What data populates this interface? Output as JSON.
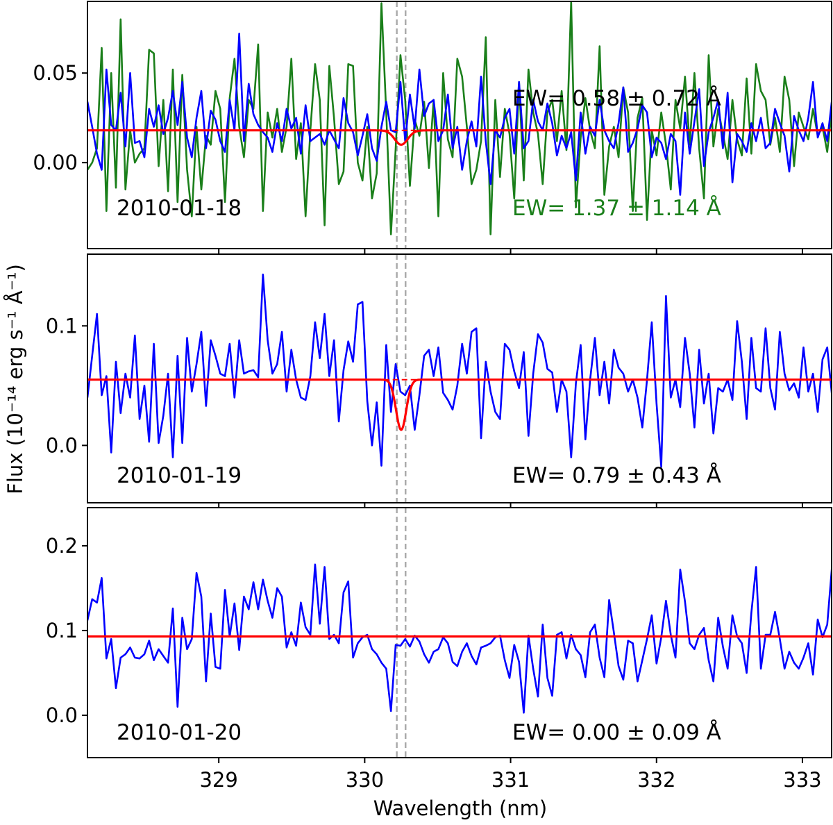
{
  "chart_data": {
    "type": "line",
    "xlabel": "Wavelength (nm)",
    "ylabel": "Flux (10⁻¹⁴ erg s⁻¹ Å⁻¹)",
    "xlim": [
      328.1,
      333.2
    ],
    "xticks": [
      329,
      330,
      331,
      332,
      333
    ],
    "line_markers_nm": [
      330.22,
      330.28
    ],
    "colors": {
      "observed": "#0000ff",
      "second_spectrum": "#1a7f1a",
      "fit": "#ff0000",
      "marker": "#aaaaaa"
    },
    "panels": [
      {
        "date": "2010-01-18",
        "ylim": [
          -0.048,
          0.09
        ],
        "yticks": [
          0.0,
          0.05
        ],
        "ytick_labels": [
          "0.00",
          "0.05"
        ],
        "fit": {
          "continuum": 0.018,
          "depth": 0.008,
          "center": 330.25,
          "sigma": 0.045
        },
        "annotations": [
          {
            "text": "EW= 0.58 ±  0.72 Å",
            "color": "#000000"
          },
          {
            "text": "EW= 1.37 ±  1.14 Å",
            "color": "#1a7f1a"
          }
        ],
        "series": [
          {
            "name": "blue spectrum",
            "color": "#0000ff",
            "x_start": 328.1,
            "x_step": 0.0325,
            "values": [
              0.034,
              0.02,
              0.005,
              -0.004,
              0.052,
              0.021,
              0.018,
              0.039,
              0.009,
              0.05,
              0.011,
              0.012,
              0.003,
              0.03,
              0.02,
              0.032,
              0.016,
              0.025,
              0.04,
              0.021,
              0.045,
              0.014,
              0.003,
              0.025,
              0.04,
              0.008,
              0.029,
              0.024,
              0.012,
              0.006,
              0.035,
              0.018,
              0.072,
              0.012,
              0.044,
              0.027,
              0.021,
              0.017,
              0.014,
              0.006,
              0.022,
              0.012,
              0.03,
              0.019,
              0.025,
              0.005,
              0.032,
              0.012,
              0.014,
              0.016,
              0.01,
              0.018,
              0.013,
              0.008,
              0.036,
              0.022,
              0.017,
              0.004,
              0.015,
              0.027,
              0.008,
              0.001,
              0.02,
              0.034,
              0.018,
              0.017,
              0.045,
              0.012,
              0.038,
              0.019,
              0.052,
              0.026,
              0.033,
              0.035,
              0.012,
              0.018,
              0.038,
              0.008,
              0.02,
              -0.004,
              0.012,
              0.023,
              0.009,
              0.048,
              0.012,
              -0.012,
              0.018,
              0.014,
              0.025,
              0.03,
              0.005,
              0.045,
              0.008,
              0.012,
              0.035,
              0.023,
              0.018,
              0.033,
              0.022,
              0.004,
              0.015,
              0.008,
              0.017,
              -0.01,
              0.028,
              0.005,
              0.02,
              0.015,
              0.035,
              0.018,
              0.012,
              0.008,
              0.022,
              0.042,
              0.006,
              0.011,
              0.019,
              0.032,
              0.028,
              0.003,
              0.014,
              0.011,
              0.002,
              0.016,
              0.012,
              -0.018,
              0.028,
              0.005,
              0.023,
              0.041,
              -0.002,
              0.017,
              0.025,
              0.035,
              0.008,
              0.039,
              -0.011,
              0.016,
              0.012,
              0.006,
              0.022,
              0.012,
              0.025,
              0.008,
              0.011,
              0.03,
              0.022,
              0.015,
              -0.005,
              0.026,
              0.018,
              0.012,
              0.025,
              0.045,
              0.014,
              0.022,
              0.012,
              0.035,
              0.027
            ]
          },
          {
            "name": "green spectrum",
            "color": "#1a7f1a",
            "x_start": 328.1,
            "x_step": 0.0325,
            "values": [
              -0.004,
              0.0,
              0.008,
              0.064,
              -0.027,
              0.05,
              -0.014,
              0.08,
              -0.015,
              0.018,
              0.0,
              0.005,
              0.008,
              0.063,
              0.061,
              -0.002,
              0.035,
              -0.016,
              0.052,
              -0.022,
              0.049,
              -0.004,
              -0.03,
              0.02,
              -0.015,
              0.015,
              0.01,
              0.04,
              0.03,
              -0.022,
              0.036,
              0.058,
              0.02,
              0.003,
              0.035,
              0.03,
              0.066,
              -0.027,
              0.028,
              0.014,
              0.03,
              0.006,
              0.02,
              0.058,
              0.002,
              0.022,
              -0.03,
              0.018,
              0.055,
              0.035,
              -0.035,
              0.054,
              0.025,
              -0.012,
              -0.005,
              0.055,
              0.054,
              0.0,
              -0.01,
              0.02,
              -0.02,
              -0.006,
              0.089,
              0.028,
              -0.04,
              0.008,
              0.06,
              0.035,
              -0.013,
              0.024,
              0.015,
              0.034,
              -0.003,
              0.035,
              -0.03,
              0.05,
              0.013,
              0.003,
              0.058,
              0.048,
              0.02,
              -0.012,
              -0.004,
              0.012,
              0.07,
              -0.04,
              0.035,
              -0.008,
              0.03,
              0.016,
              -0.02,
              0.045,
              -0.01,
              0.052,
              0.028,
              0.016,
              -0.012,
              0.028,
              0.035,
              0.012,
              0.04,
              0.007,
              0.09,
              -0.025,
              0.014,
              0.036,
              0.018,
              0.008,
              0.065,
              -0.018,
              0.009,
              0.02,
              0.003,
              0.042,
              0.028,
              -0.027,
              0.025,
              0.036,
              -0.032,
              0.018,
              0.004,
              0.028,
              0.01,
              -0.015,
              0.035,
              0.019,
              0.048,
              0.01,
              0.05,
              0.008,
              -0.02,
              0.06,
              0.009,
              0.03,
              0.016,
              0.002,
              0.035,
              0.013,
              0.004,
              0.047,
              0.005,
              0.055,
              0.04,
              0.035,
              0.01,
              0.025,
              0.006,
              0.048,
              0.035,
              -0.002,
              0.028,
              0.02,
              0.013,
              0.03,
              0.015,
              0.02,
              0.006,
              0.03,
              0.012
            ]
          }
        ]
      },
      {
        "date": "2010-01-19",
        "ylim": [
          -0.048,
          0.16
        ],
        "yticks": [
          0.0,
          0.1
        ],
        "ytick_labels": [
          "0.0",
          "0.1"
        ],
        "fit": {
          "continuum": 0.055,
          "depth": 0.042,
          "center": 330.25,
          "sigma": 0.035
        },
        "annotations": [
          {
            "text": "EW= 0.79 ±  0.43 Å",
            "color": "#000000"
          }
        ],
        "series": [
          {
            "name": "blue spectrum",
            "color": "#0000ff",
            "x_start": 328.1,
            "x_step": 0.0325,
            "values": [
              0.04,
              0.075,
              0.11,
              0.042,
              0.058,
              -0.006,
              0.07,
              0.027,
              0.06,
              0.04,
              0.092,
              0.022,
              0.05,
              0.003,
              0.085,
              0.002,
              0.025,
              0.06,
              -0.01,
              0.075,
              0.002,
              0.09,
              0.045,
              0.068,
              0.095,
              0.033,
              0.088,
              0.075,
              0.06,
              0.058,
              0.085,
              0.04,
              0.088,
              0.06,
              0.062,
              0.063,
              0.057,
              0.143,
              0.088,
              0.06,
              0.068,
              0.095,
              0.045,
              0.08,
              0.055,
              0.04,
              0.038,
              0.058,
              0.103,
              0.073,
              0.11,
              0.058,
              0.088,
              0.02,
              0.063,
              0.087,
              0.07,
              0.118,
              0.12,
              0.037,
              0.0,
              0.036,
              -0.017,
              0.084,
              0.028,
              0.068,
              0.045,
              0.042,
              0.05,
              0.013,
              0.042,
              0.075,
              0.08,
              0.058,
              0.082,
              0.044,
              0.038,
              0.03,
              0.05,
              0.085,
              0.06,
              0.095,
              0.098,
              0.006,
              0.07,
              0.045,
              0.028,
              0.022,
              0.085,
              0.08,
              0.062,
              0.048,
              0.078,
              0.008,
              0.06,
              0.093,
              0.086,
              0.064,
              0.061,
              0.028,
              0.055,
              0.045,
              -0.01,
              0.052,
              0.084,
              0.005,
              0.055,
              0.09,
              0.042,
              0.07,
              0.035,
              0.08,
              0.065,
              0.06,
              0.045,
              0.055,
              0.04,
              0.015,
              0.055,
              0.103,
              0.035,
              -0.018,
              0.125,
              0.04,
              0.055,
              0.032,
              0.09,
              0.06,
              0.015,
              0.08,
              0.035,
              0.06,
              0.01,
              0.048,
              0.045,
              0.055,
              0.038,
              0.104,
              0.07,
              0.022,
              0.09,
              0.048,
              0.045,
              0.098,
              0.048,
              0.03,
              0.095,
              0.06,
              0.046,
              0.052,
              0.04,
              0.082,
              0.045,
              0.06,
              0.028,
              0.072,
              0.082,
              0.042,
              0.045,
              0.088,
              0.076
            ]
          }
        ]
      },
      {
        "date": "2010-01-20",
        "ylim": [
          -0.05,
          0.245
        ],
        "yticks": [
          0.0,
          0.1,
          0.2
        ],
        "ytick_labels": [
          "0.0",
          "0.1",
          "0.2"
        ],
        "fit": {
          "continuum": 0.093,
          "depth": 0.0,
          "center": 330.25,
          "sigma": 0.04
        },
        "annotations": [
          {
            "text": "EW= 0.00 ±  0.09 Å",
            "color": "#000000"
          }
        ],
        "series": [
          {
            "name": "blue spectrum",
            "color": "#0000ff",
            "x_start": 328.1,
            "x_step": 0.0325,
            "values": [
              0.112,
              0.137,
              0.133,
              0.162,
              0.067,
              0.09,
              0.032,
              0.068,
              0.072,
              0.08,
              0.068,
              0.067,
              0.072,
              0.088,
              0.065,
              0.078,
              0.07,
              0.062,
              0.126,
              0.01,
              0.115,
              0.078,
              0.09,
              0.168,
              0.14,
              0.04,
              0.12,
              0.057,
              0.055,
              0.148,
              0.093,
              0.132,
              0.077,
              0.14,
              0.125,
              0.157,
              0.125,
              0.16,
              0.135,
              0.115,
              0.15,
              0.14,
              0.08,
              0.098,
              0.082,
              0.133,
              0.104,
              0.095,
              0.178,
              0.108,
              0.175,
              0.09,
              0.095,
              0.085,
              0.145,
              0.158,
              0.068,
              0.085,
              0.092,
              0.095,
              0.078,
              0.072,
              0.062,
              0.055,
              0.005,
              0.083,
              0.082,
              0.09,
              0.081,
              0.094,
              0.087,
              0.072,
              0.062,
              0.075,
              0.078,
              0.092,
              0.085,
              0.063,
              0.058,
              0.075,
              0.085,
              0.07,
              0.06,
              0.08,
              0.082,
              0.085,
              0.092,
              0.094,
              0.065,
              0.044,
              0.083,
              0.063,
              0.003,
              0.094,
              0.055,
              0.022,
              0.107,
              0.044,
              0.023,
              0.095,
              0.098,
              0.067,
              0.095,
              0.078,
              0.071,
              0.045,
              0.098,
              0.107,
              0.068,
              0.045,
              0.136,
              0.098,
              0.058,
              0.042,
              0.088,
              0.085,
              0.04,
              0.065,
              0.09,
              0.118,
              0.061,
              0.092,
              0.135,
              0.095,
              0.068,
              0.172,
              0.134,
              0.085,
              0.078,
              0.095,
              0.103,
              0.065,
              0.04,
              0.115,
              0.081,
              0.055,
              0.118,
              0.093,
              0.085,
              0.05,
              0.121,
              0.175,
              0.055,
              0.095,
              0.095,
              0.122,
              0.09,
              0.055,
              0.075,
              0.062,
              0.055,
              0.068,
              0.085,
              0.048,
              0.113,
              0.092,
              0.107,
              0.175,
              0.062,
              0.072,
              0.09,
              0.095,
              0.125
            ]
          }
        ]
      }
    ]
  }
}
